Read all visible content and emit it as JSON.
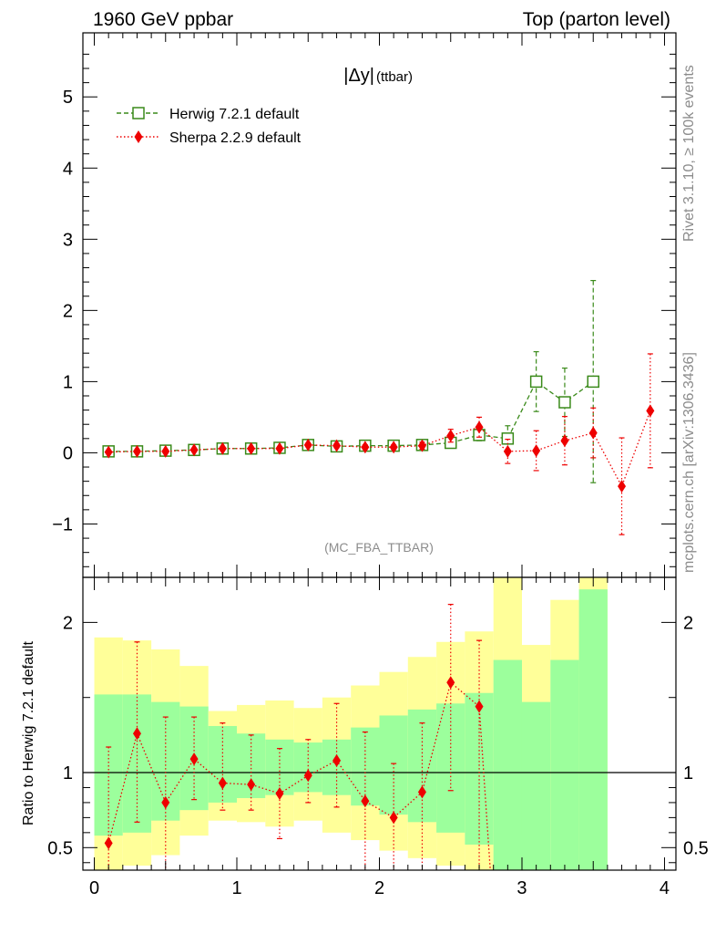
{
  "header": {
    "left": "1960 GeV ppbar",
    "right": "Top (parton level)"
  },
  "side_labels": {
    "rivet": "Rivet 3.1.10, ≥ 100k events",
    "mcplots": "mcplots.cern.ch [arXiv:1306.3436]"
  },
  "chart_data": [
    {
      "type": "line",
      "title": "|Δy| (ttbar)",
      "title_main": "|Δy|",
      "title_sub": "(ttbar)",
      "analysis_tag": "(MC_FBA_TTBAR)",
      "xlim": [
        -0.08,
        4.08
      ],
      "ylim": [
        -1.75,
        5.9
      ],
      "y_ticks": [
        -1,
        0,
        1,
        2,
        3,
        4,
        5
      ],
      "y_tick_labels": [
        "−1",
        "0",
        "1",
        "2",
        "3",
        "4",
        "5"
      ],
      "legend_position": "top-left",
      "colors": {
        "herwig": "#3a8a1a",
        "sherpa": "#ee0000"
      },
      "series": [
        {
          "name": "Herwig 7.2.1 default",
          "marker": "open-square",
          "line": "dashed",
          "x": [
            0.1,
            0.3,
            0.5,
            0.7,
            0.9,
            1.1,
            1.3,
            1.5,
            1.7,
            1.9,
            2.1,
            2.3,
            2.5,
            2.7,
            2.9,
            3.1,
            3.3,
            3.5
          ],
          "y": [
            0.02,
            0.02,
            0.03,
            0.04,
            0.06,
            0.06,
            0.07,
            0.11,
            0.09,
            0.1,
            0.1,
            0.11,
            0.14,
            0.25,
            0.2,
            1.0,
            0.71,
            1.0
          ],
          "err": [
            0.01,
            0.01,
            0.01,
            0.01,
            0.01,
            0.01,
            0.01,
            0.02,
            0.02,
            0.02,
            0.02,
            0.03,
            0.05,
            0.08,
            0.18,
            0.42,
            0.48,
            1.42
          ]
        },
        {
          "name": "Sherpa 2.2.9 default",
          "marker": "filled-diamond",
          "line": "dotted",
          "x": [
            0.1,
            0.3,
            0.5,
            0.7,
            0.9,
            1.1,
            1.3,
            1.5,
            1.7,
            1.9,
            2.1,
            2.3,
            2.5,
            2.7,
            2.9,
            3.1,
            3.3,
            3.5,
            3.7,
            3.9
          ],
          "y": [
            0.01,
            0.02,
            0.02,
            0.04,
            0.06,
            0.06,
            0.06,
            0.11,
            0.1,
            0.08,
            0.08,
            0.1,
            0.24,
            0.36,
            0.02,
            0.03,
            0.17,
            0.28,
            -0.47,
            0.59
          ],
          "err": [
            0.01,
            0.01,
            0.01,
            0.01,
            0.01,
            0.01,
            0.01,
            0.02,
            0.03,
            0.03,
            0.03,
            0.05,
            0.09,
            0.14,
            0.17,
            0.28,
            0.34,
            0.35,
            0.68,
            0.8
          ]
        }
      ]
    },
    {
      "type": "line",
      "ylabel": "Ratio to Herwig 7.2.1 default",
      "xlim": [
        -0.08,
        4.08
      ],
      "ylim": [
        0.35,
        2.3
      ],
      "x_ticks": [
        0,
        1,
        2,
        3,
        4
      ],
      "x_tick_labels": [
        "0",
        "1",
        "2",
        "3",
        "4"
      ],
      "y_ticks": [
        0.5,
        1,
        2
      ],
      "y_tick_labels": [
        "0.5",
        "1",
        "2"
      ],
      "reference_line": 1,
      "colors": {
        "band_inner": "#9cff9c",
        "band_outer": "#ffff99",
        "sherpa": "#ee0000"
      },
      "bands": {
        "x_edges": [
          0,
          0.2,
          0.4,
          0.6,
          0.8,
          1.0,
          1.2,
          1.4,
          1.6,
          1.8,
          2.0,
          2.2,
          2.4,
          2.6,
          2.8,
          3.0,
          3.2,
          3.4,
          3.6
        ],
        "inner_low": [
          0.58,
          0.6,
          0.68,
          0.75,
          0.8,
          0.83,
          0.85,
          0.87,
          0.85,
          0.78,
          0.72,
          0.67,
          0.6,
          0.52,
          0.3,
          0.3,
          0.3,
          0.3
        ],
        "inner_high": [
          1.52,
          1.52,
          1.47,
          1.44,
          1.31,
          1.26,
          1.22,
          1.2,
          1.22,
          1.3,
          1.38,
          1.42,
          1.46,
          1.53,
          1.75,
          1.47,
          1.75,
          2.22
        ],
        "outer_low": [
          0.3,
          0.38,
          0.45,
          0.58,
          0.68,
          0.67,
          0.64,
          0.68,
          0.6,
          0.55,
          0.48,
          0.43,
          0.38,
          0.3,
          0.3,
          0.58,
          0.3,
          0.3
        ],
        "outer_high": [
          1.9,
          1.88,
          1.82,
          1.71,
          1.41,
          1.45,
          1.48,
          1.43,
          1.5,
          1.58,
          1.67,
          1.77,
          1.87,
          1.94,
          2.3,
          1.85,
          2.15,
          2.3
        ]
      },
      "series": [
        {
          "name": "Sherpa 2.2.9 default",
          "x": [
            0.1,
            0.3,
            0.5,
            0.7,
            0.9,
            1.1,
            1.3,
            1.5,
            1.7,
            1.9,
            2.1,
            2.3,
            2.5,
            2.7
          ],
          "y": [
            0.53,
            1.26,
            0.8,
            1.09,
            0.93,
            0.92,
            0.86,
            0.98,
            1.08,
            0.81,
            0.7,
            0.87,
            1.6,
            1.44
          ],
          "err_low": [
            0.45,
            0.59,
            0.5,
            0.27,
            0.18,
            0.17,
            0.3,
            0.18,
            0.31,
            0.5,
            0.4,
            0.55,
            0.72,
            1.15
          ],
          "err_high": [
            0.64,
            0.61,
            0.57,
            0.28,
            0.4,
            0.33,
            0.3,
            0.24,
            0.38,
            0.46,
            0.36,
            0.46,
            0.52,
            0.44
          ]
        }
      ]
    }
  ]
}
